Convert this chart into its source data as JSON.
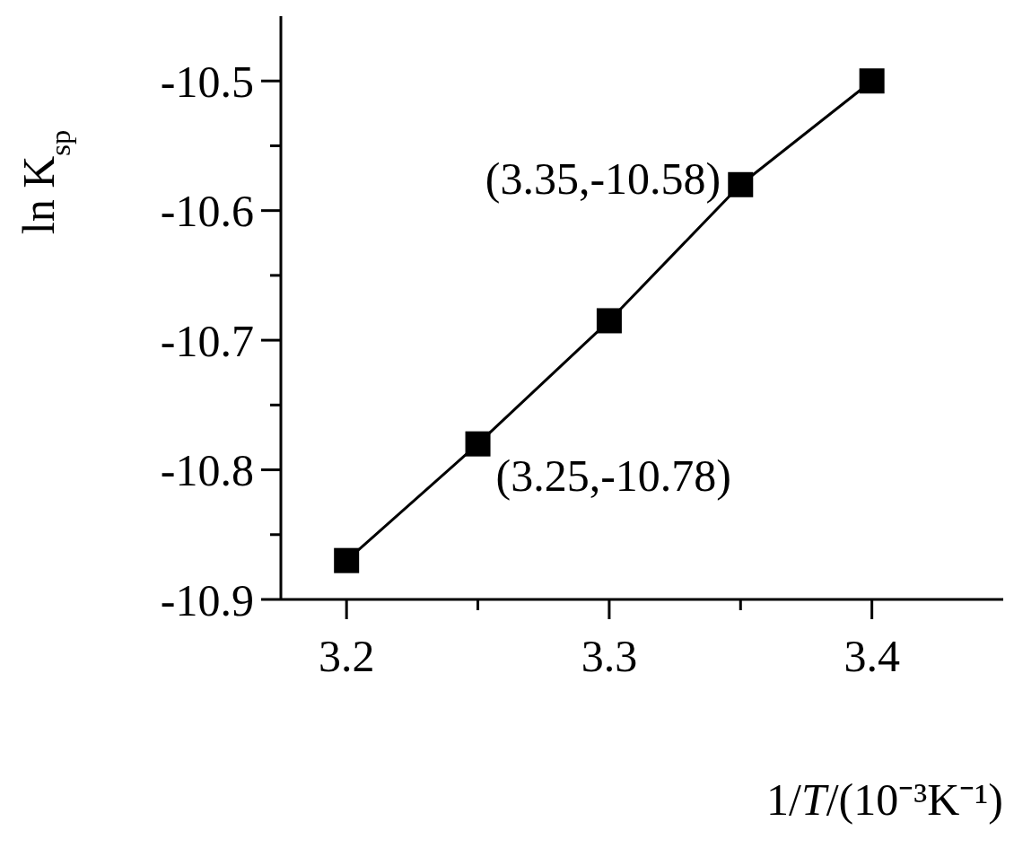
{
  "chart_data": {
    "type": "line",
    "xlabel": "1/T/(10⁻³K⁻¹)",
    "ylabel": "ln K$_{sp}$",
    "x": [
      3.2,
      3.25,
      3.3,
      3.35,
      3.4
    ],
    "series": [
      {
        "color": "#000000",
        "values": [
          -10.87,
          -10.78,
          -10.685,
          -10.58,
          -10.5
        ]
      }
    ],
    "xlim": [
      3.175,
      3.45
    ],
    "ylim": [
      -10.9,
      -10.45
    ],
    "xticks": [
      3.2,
      {
        "value": 3.25,
        "label": null
      },
      3.3,
      {
        "value": 3.35,
        "label": null
      },
      3.4
    ],
    "yticks": [
      -10.9,
      {
        "value": -10.85,
        "label": null
      },
      -10.8,
      {
        "value": -10.75,
        "label": null
      },
      -10.7,
      {
        "value": -10.65,
        "label": null
      },
      -10.6,
      {
        "value": -10.55,
        "label": null
      },
      -10.5
    ],
    "annotations": [
      {
        "text": "(3.35,-10.58)",
        "x": 3.35,
        "y": -10.58
      },
      {
        "text": "(3.25,-10.78)",
        "x": 3.25,
        "y": -10.78
      }
    ],
    "marker": "square",
    "line_style": "solid",
    "grid": false
  }
}
